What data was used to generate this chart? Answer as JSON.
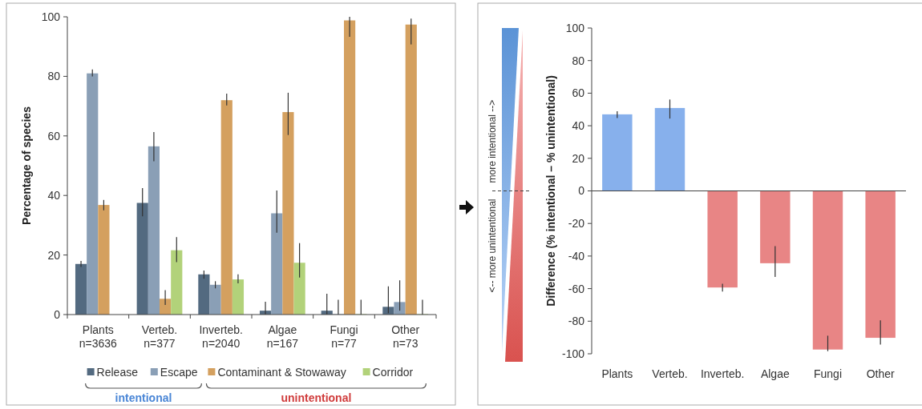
{
  "chart_data": [
    {
      "type": "bar",
      "ylabel": "Percentage of species",
      "categories": [
        "Plants\nn=3636",
        "Verteb.\nn=377",
        "Inverteb.\nn=2040",
        "Algae\nn=167",
        "Fungi\nn=77",
        "Other\nn=73"
      ],
      "ylim": [
        0,
        100
      ],
      "yticks": [
        0,
        20,
        40,
        60,
        80,
        100
      ],
      "legend": "bottom",
      "series": [
        {
          "name": "Release",
          "color": "#536a80",
          "values": [
            17,
            37.5,
            13.5,
            1.3,
            1.3,
            2.6
          ],
          "errors": [
            [
              16,
              18
            ],
            [
              33,
              42.5
            ],
            [
              12,
              14.8
            ],
            [
              0,
              4.3
            ],
            [
              0,
              7
            ],
            [
              0.5,
              9.5
            ]
          ]
        },
        {
          "name": "Escape",
          "color": "#8a9fb6",
          "values": [
            81,
            56.5,
            10,
            34,
            0,
            4.2
          ],
          "errors": [
            [
              80,
              82.3
            ],
            [
              51.5,
              61.3
            ],
            [
              8.8,
              11.2
            ],
            [
              27.5,
              41.7
            ],
            [
              0,
              5
            ],
            [
              1.3,
              11.5
            ]
          ]
        },
        {
          "name": "Contaminant & Stowaway",
          "color": "#d4a05f",
          "values": [
            36.8,
            5.3,
            72,
            68,
            98.8,
            97.4
          ],
          "errors": [
            [
              35,
              38.5
            ],
            [
              3.2,
              8.2
            ],
            [
              70.2,
              74.2
            ],
            [
              60.3,
              74.5
            ],
            [
              93.3,
              100
            ],
            [
              90.7,
              99.4
            ]
          ]
        },
        {
          "name": "Corridor",
          "color": "#b2d27a",
          "values": [
            null,
            21.6,
            11.8,
            17.4,
            0,
            0
          ],
          "errors": [
            null,
            [
              17.6,
              26
            ],
            [
              10.5,
              13.5
            ],
            [
              12.4,
              24
            ],
            [
              0,
              5
            ],
            [
              0,
              5
            ]
          ]
        }
      ],
      "annotations": [
        "intentional",
        "unintentional"
      ]
    },
    {
      "type": "bar",
      "ylabel": "Difference (% intentional – % unintentional)",
      "categories": [
        "Plants",
        "Verteb.",
        "Inverteb.",
        "Algae",
        "Fungi",
        "Other"
      ],
      "ylim": [
        -100,
        100
      ],
      "yticks": [
        -100,
        -80,
        -60,
        -40,
        -20,
        0,
        20,
        40,
        60,
        80,
        100
      ],
      "values": [
        47,
        50.9,
        -59.3,
        -44.4,
        -97.4,
        -90.2
      ],
      "colors": [
        "#87b0ec",
        "#87b0ec",
        "#e88585",
        "#e88585",
        "#e88585",
        "#e88585"
      ],
      "errors": [
        [
          44.7,
          48.9
        ],
        [
          44.4,
          56.1
        ],
        [
          -61.8,
          -57
        ],
        [
          -52.8,
          -33.9
        ],
        [
          -98.4,
          -88.9
        ],
        [
          -94.4,
          -79.5
        ]
      ],
      "annotations": [
        "<-- more unintentional",
        "more intentional -->"
      ]
    }
  ]
}
